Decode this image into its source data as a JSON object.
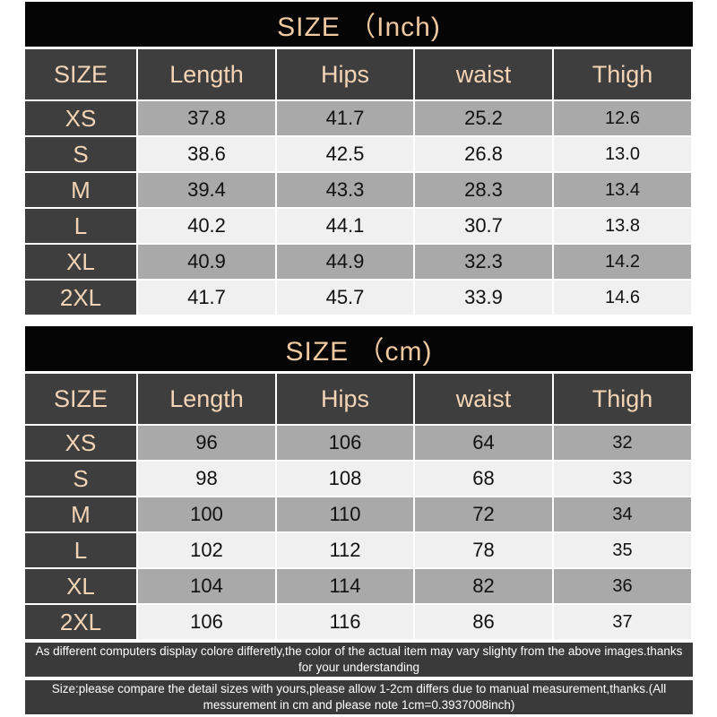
{
  "inch_table": {
    "title": "SIZE （Inch)",
    "headers": [
      "SIZE",
      "Length",
      "Hips",
      "waist",
      "Thigh"
    ],
    "rows": [
      [
        "XS",
        "37.8",
        "41.7",
        "25.2",
        "12.6"
      ],
      [
        "S",
        "38.6",
        "42.5",
        "26.8",
        "13.0"
      ],
      [
        "M",
        "39.4",
        "43.3",
        "28.3",
        "13.4"
      ],
      [
        "L",
        "40.2",
        "44.1",
        "30.7",
        "13.8"
      ],
      [
        "XL",
        "40.9",
        "44.9",
        "32.3",
        "14.2"
      ],
      [
        "2XL",
        "41.7",
        "45.7",
        "33.9",
        "14.6"
      ]
    ]
  },
  "cm_table": {
    "title": "SIZE （cm)",
    "headers": [
      "SIZE",
      "Length",
      "Hips",
      "waist",
      "Thigh"
    ],
    "rows": [
      [
        "XS",
        "96",
        "106",
        "64",
        "32"
      ],
      [
        "S",
        "98",
        "108",
        "68",
        "33"
      ],
      [
        "M",
        "100",
        "110",
        "72",
        "34"
      ],
      [
        "L",
        "102",
        "112",
        "78",
        "35"
      ],
      [
        "XL",
        "104",
        "114",
        "82",
        "36"
      ],
      [
        "2XL",
        "106",
        "116",
        "86",
        "37"
      ]
    ]
  },
  "notes": {
    "color_note": "As different computers display colore differetly,the color of the actual item may vary slighty from the above images.thanks for your understanding",
    "size_note": "Size:please compare the detail sizes with yours,please allow 1-2cm differs due to manual measurement,thanks.(All messurement in cm and please note 1cm=0.3937008inch)"
  },
  "colors": {
    "title_bg": "#050505",
    "title_text": "#f1c9a0",
    "header_bg": "#3e3e3e",
    "header_text": "#f4d4b4",
    "row_dark": "#a9a9a9",
    "row_light": "#f0f0f0"
  }
}
